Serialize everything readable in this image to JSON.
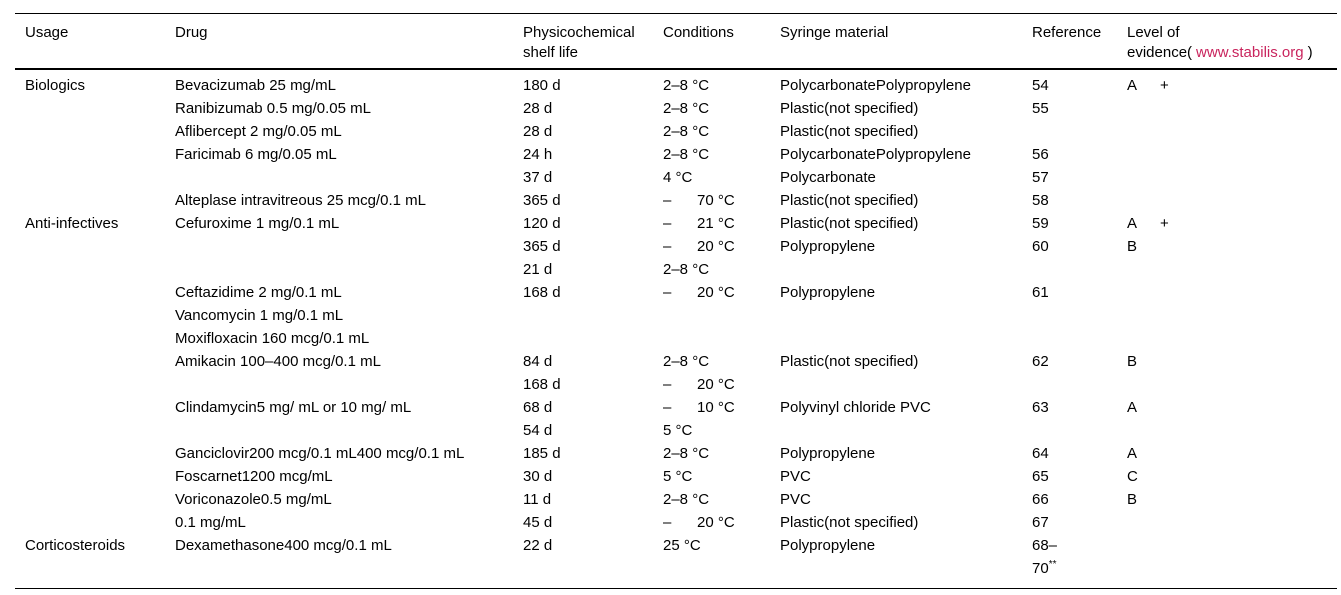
{
  "page": {
    "background": "#ffffff",
    "text_color": "#000000",
    "link_color": "#c9245d"
  },
  "header": {
    "usage": "Usage",
    "drug": "Drug",
    "shelf_line1": "Physicochemical",
    "shelf_line2": "shelf life",
    "conditions": "Conditions",
    "material": "Syringe material",
    "reference": "Reference",
    "evidence_line1": "Level of",
    "evidence_prefix": "evidence(",
    "evidence_link": "www.stabilis.org",
    "evidence_suffix": ")"
  },
  "rows": [
    {
      "usage": "Biologics",
      "drug": "Bevacizumab 25 mg/mL",
      "shelf": "180 d",
      "cond": "2–8 °C",
      "material": "PolycarbonatePolypropylene",
      "ref": "54",
      "ev": "A",
      "plus": "+"
    },
    {
      "drug": "Ranibizumab 0.5 mg/0.05 mL",
      "shelf": "28 d",
      "cond": "2–8 °C",
      "material": "Plastic(not specified)",
      "ref": "55"
    },
    {
      "drug": "Aflibercept 2 mg/0.05 mL",
      "shelf": "28 d",
      "cond": "2–8 °C",
      "material": "Plastic(not specified)"
    },
    {
      "drug": "Faricimab 6 mg/0.05 mL",
      "shelf": "24 h",
      "cond": "2–8 °C",
      "material": "PolycarbonatePolypropylene",
      "ref": "56"
    },
    {
      "shelf": "37 d",
      "cond": "4 °C",
      "material": "Polycarbonate",
      "ref": "57"
    },
    {
      "drug": "Alteplase intravitreous 25 mcg/0.1 mL",
      "shelf": "365 d",
      "dash": "–",
      "cond": "70 °C",
      "material": "Plastic(not specified)",
      "ref": "58"
    },
    {
      "usage": "Anti-infectives",
      "drug": "Cefuroxime 1 mg/0.1 mL",
      "shelf": "120 d",
      "dash": "–",
      "cond": "21 °C",
      "material": "Plastic(not specified)",
      "ref": "59",
      "ev": "A",
      "plus": "+"
    },
    {
      "shelf": "365 d",
      "dash": "–",
      "cond": "20 °C",
      "material": "Polypropylene",
      "ref": "60",
      "ev": "B"
    },
    {
      "shelf": "21 d",
      "cond": "2–8 °C"
    },
    {
      "drug": "Ceftazidime 2 mg/0.1 mL",
      "shelf": "168 d",
      "dash": "–",
      "cond": "20 °C",
      "material": "Polypropylene",
      "ref": "61"
    },
    {
      "drug": "Vancomycin 1 mg/0.1 mL"
    },
    {
      "drug": "Moxifloxacin 160 mcg/0.1 mL"
    },
    {
      "drug": "Amikacin 100–400 mcg/0.1 mL",
      "shelf": "84 d",
      "cond": "2–8 °C",
      "material": "Plastic(not specified)",
      "ref": "62",
      "ev": "B"
    },
    {
      "shelf": "168 d",
      "dash": "–",
      "cond": "20 °C"
    },
    {
      "drug": "Clindamycin5 mg/ mL or 10 mg/ mL",
      "shelf": "68 d",
      "dash": "–",
      "cond": "10 °C",
      "material": "Polyvinyl chloride PVC",
      "ref": "63",
      "ev": "A"
    },
    {
      "shelf": "54 d",
      "cond": "5 °C"
    },
    {
      "drug": "Ganciclovir200 mcg/0.1 mL400 mcg/0.1 mL",
      "shelf": "185 d",
      "cond": "2–8 °C",
      "material": "Polypropylene",
      "ref": "64",
      "ev": "A"
    },
    {
      "drug": "Foscarnet1200 mcg/mL",
      "shelf": "30 d",
      "cond": "5 °C",
      "material": "PVC",
      "ref": "65",
      "ev": "C"
    },
    {
      "drug": "Voriconazole0.5 mg/mL",
      "shelf": "11 d",
      "cond": "2–8 °C",
      "material": "PVC",
      "ref": "66",
      "ev": "B"
    },
    {
      "drug": "0.1 mg/mL",
      "shelf": "45 d",
      "dash": "–",
      "cond": "20 °C",
      "material": "Plastic(not specified)",
      "ref": "67"
    },
    {
      "usage": "Corticosteroids",
      "drug": "Dexamethasone400 mcg/0.1 mL",
      "shelf": "22 d",
      "cond": "25 °C",
      "material": "Polypropylene",
      "ref": "68–",
      "ref2": "70",
      "ref2_sup": "**"
    }
  ]
}
